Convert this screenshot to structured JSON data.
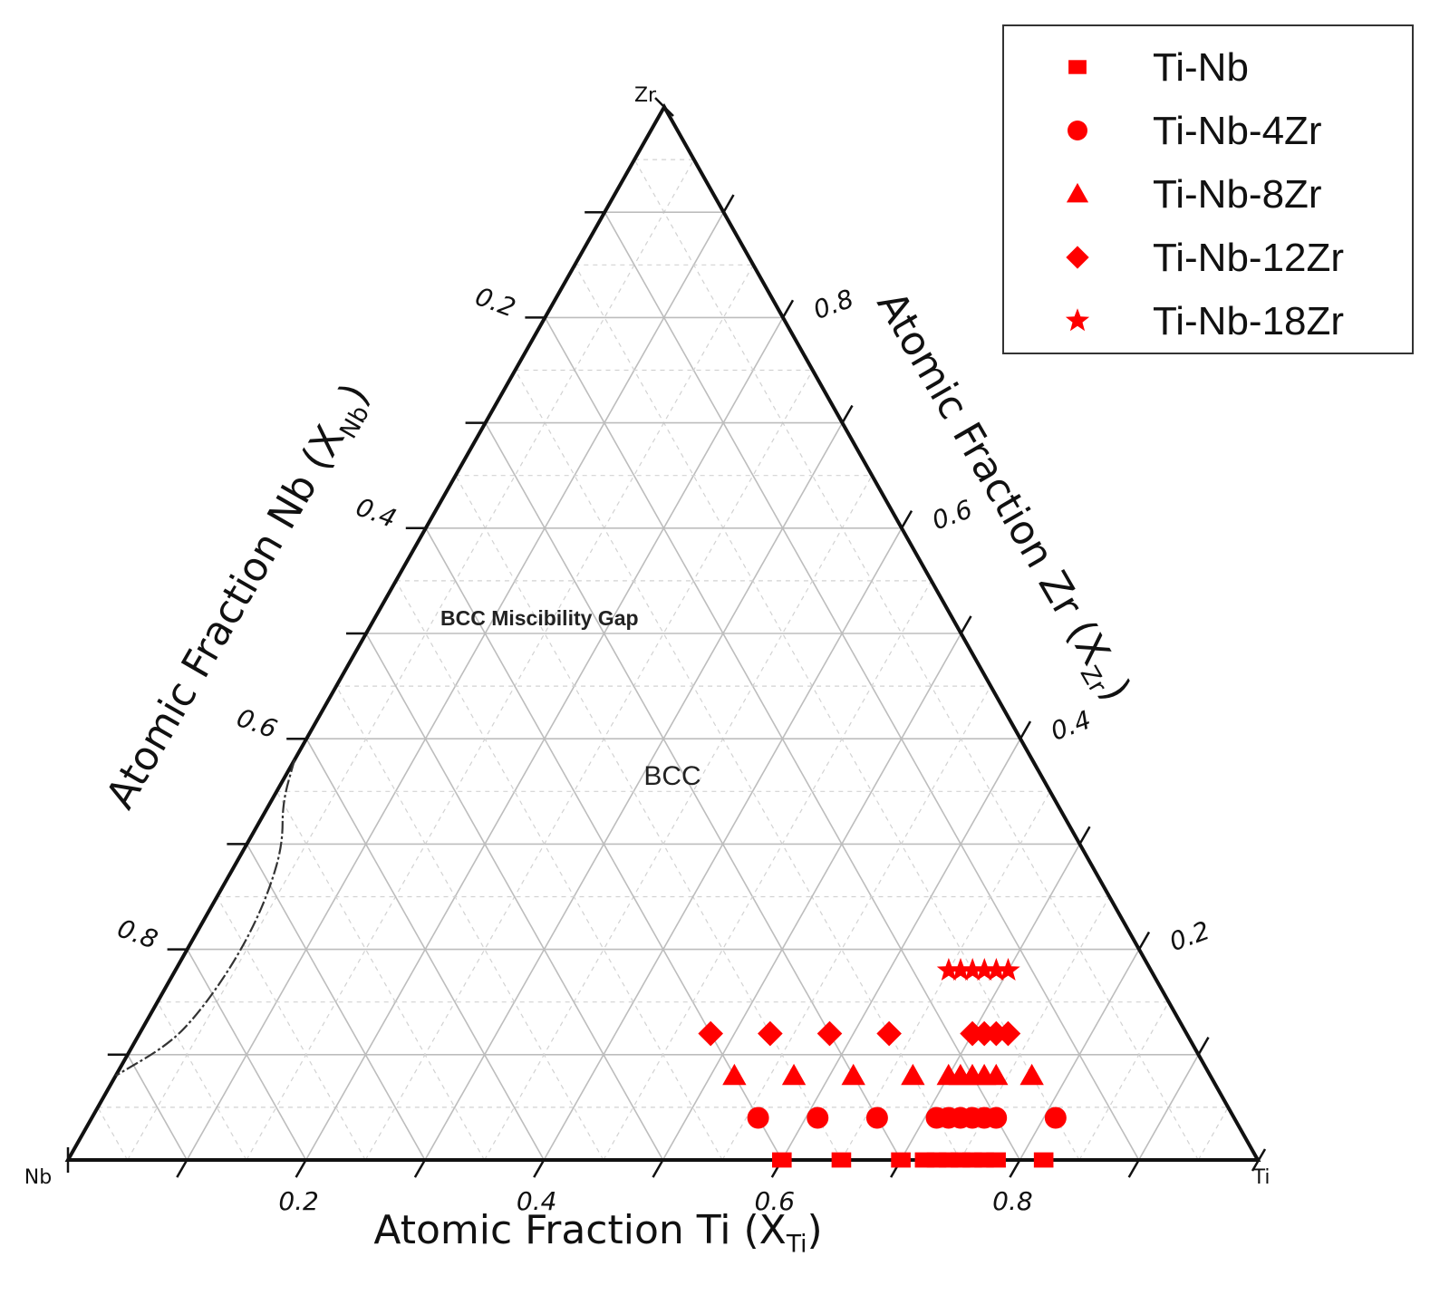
{
  "chart_data": {
    "type": "scatter",
    "subtype": "ternary",
    "corners": {
      "top": "Zr",
      "left": "Nb",
      "right": "Ti"
    },
    "axes": [
      {
        "name": "Ti",
        "label_prefix": "Atomic Fraction Ti",
        "symbol": "X",
        "subscript": "Ti",
        "ticks": [
          "0.2",
          "0.4",
          "0.6",
          "0.8"
        ],
        "range": [
          0,
          1
        ]
      },
      {
        "name": "Nb",
        "label_prefix": "Atomic Fraction Nb",
        "symbol": "X",
        "subscript": "Nb",
        "ticks": [
          "0.2",
          "0.4",
          "0.6",
          "0.8"
        ],
        "range": [
          0,
          1
        ]
      },
      {
        "name": "Zr",
        "label_prefix": "Atomic Fraction Zr",
        "symbol": "X",
        "subscript": "Zr",
        "ticks": [
          "0.2",
          "0.4",
          "0.6",
          "0.8"
        ],
        "range": [
          0,
          1
        ]
      }
    ],
    "grid": true,
    "regions": [
      {
        "label": "BCC Miscibility Gap"
      },
      {
        "label": "BCC"
      }
    ],
    "miscibility_gap_boundary": [
      {
        "Ti": 0.0,
        "Zr": 0.38
      },
      {
        "Ti": 0.01,
        "Zr": 0.34
      },
      {
        "Ti": 0.03,
        "Zr": 0.3
      },
      {
        "Ti": 0.04,
        "Zr": 0.26
      },
      {
        "Ti": 0.045,
        "Zr": 0.22
      },
      {
        "Ti": 0.045,
        "Zr": 0.18
      },
      {
        "Ti": 0.04,
        "Zr": 0.14
      },
      {
        "Ti": 0.03,
        "Zr": 0.11
      },
      {
        "Ti": 0.0,
        "Zr": 0.08
      }
    ],
    "legend_position": "top-right",
    "marker_color": "#ff0000",
    "series": [
      {
        "name": "Ti-Nb",
        "marker": "square",
        "points": [
          {
            "Ti": 0.6,
            "Zr": 0.0
          },
          {
            "Ti": 0.65,
            "Zr": 0.0
          },
          {
            "Ti": 0.7,
            "Zr": 0.0
          },
          {
            "Ti": 0.72,
            "Zr": 0.0
          },
          {
            "Ti": 0.73,
            "Zr": 0.0
          },
          {
            "Ti": 0.74,
            "Zr": 0.0
          },
          {
            "Ti": 0.75,
            "Zr": 0.0
          },
          {
            "Ti": 0.76,
            "Zr": 0.0
          },
          {
            "Ti": 0.77,
            "Zr": 0.0
          },
          {
            "Ti": 0.78,
            "Zr": 0.0
          },
          {
            "Ti": 0.82,
            "Zr": 0.0
          }
        ]
      },
      {
        "name": "Ti-Nb-4Zr",
        "marker": "circle",
        "points": [
          {
            "Ti": 0.56,
            "Zr": 0.04
          },
          {
            "Ti": 0.61,
            "Zr": 0.04
          },
          {
            "Ti": 0.66,
            "Zr": 0.04
          },
          {
            "Ti": 0.71,
            "Zr": 0.04
          },
          {
            "Ti": 0.72,
            "Zr": 0.04
          },
          {
            "Ti": 0.73,
            "Zr": 0.04
          },
          {
            "Ti": 0.74,
            "Zr": 0.04
          },
          {
            "Ti": 0.75,
            "Zr": 0.04
          },
          {
            "Ti": 0.76,
            "Zr": 0.04
          },
          {
            "Ti": 0.81,
            "Zr": 0.04
          }
        ]
      },
      {
        "name": "Ti-Nb-8Zr",
        "marker": "triangle",
        "points": [
          {
            "Ti": 0.52,
            "Zr": 0.08
          },
          {
            "Ti": 0.57,
            "Zr": 0.08
          },
          {
            "Ti": 0.62,
            "Zr": 0.08
          },
          {
            "Ti": 0.67,
            "Zr": 0.08
          },
          {
            "Ti": 0.7,
            "Zr": 0.08
          },
          {
            "Ti": 0.71,
            "Zr": 0.08
          },
          {
            "Ti": 0.72,
            "Zr": 0.08
          },
          {
            "Ti": 0.73,
            "Zr": 0.08
          },
          {
            "Ti": 0.74,
            "Zr": 0.08
          },
          {
            "Ti": 0.77,
            "Zr": 0.08
          }
        ]
      },
      {
        "name": "Ti-Nb-12Zr",
        "marker": "diamond",
        "points": [
          {
            "Ti": 0.48,
            "Zr": 0.12
          },
          {
            "Ti": 0.53,
            "Zr": 0.12
          },
          {
            "Ti": 0.58,
            "Zr": 0.12
          },
          {
            "Ti": 0.63,
            "Zr": 0.12
          },
          {
            "Ti": 0.7,
            "Zr": 0.12
          },
          {
            "Ti": 0.71,
            "Zr": 0.12
          },
          {
            "Ti": 0.72,
            "Zr": 0.12
          },
          {
            "Ti": 0.73,
            "Zr": 0.12
          }
        ]
      },
      {
        "name": "Ti-Nb-18Zr",
        "marker": "star",
        "points": [
          {
            "Ti": 0.65,
            "Zr": 0.18
          },
          {
            "Ti": 0.66,
            "Zr": 0.18
          },
          {
            "Ti": 0.67,
            "Zr": 0.18
          },
          {
            "Ti": 0.68,
            "Zr": 0.18
          },
          {
            "Ti": 0.69,
            "Zr": 0.18
          },
          {
            "Ti": 0.7,
            "Zr": 0.18
          }
        ]
      }
    ]
  }
}
